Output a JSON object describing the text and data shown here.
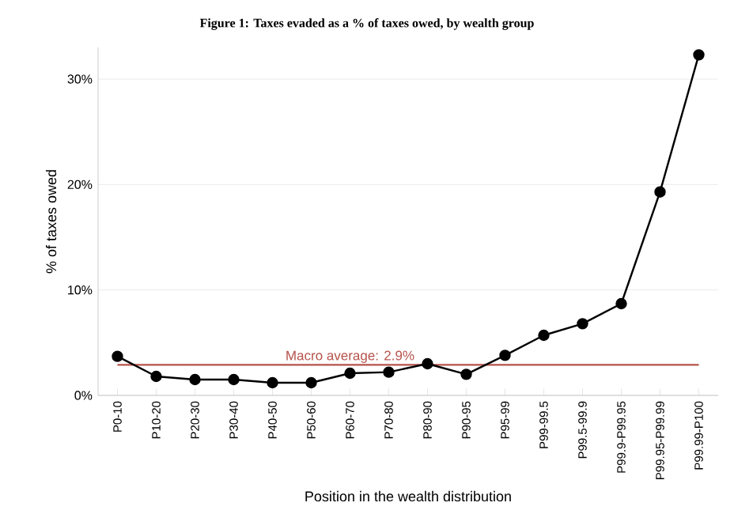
{
  "chart_data": {
    "type": "line",
    "title": "Figure 1: Taxes evaded as a % of taxes owed, by wealth group",
    "xlabel": "Position in the wealth distribution",
    "ylabel": "% of taxes owed",
    "categories": [
      "P0-10",
      "P10-20",
      "P20-30",
      "P30-40",
      "P40-50",
      "P50-60",
      "P60-70",
      "P70-80",
      "P80-90",
      "P90-95",
      "P95-99",
      "P99-99.5",
      "P99.5-99.9",
      "P99.9-P99.95",
      "P99.95-P99.99",
      "P99.99-P100"
    ],
    "series": [
      {
        "color": "#000000",
        "values": [
          3.7,
          1.8,
          1.5,
          1.5,
          1.2,
          1.2,
          2.1,
          2.2,
          3.0,
          2.0,
          3.8,
          5.7,
          6.8,
          8.7,
          19.3,
          32.3
        ]
      }
    ],
    "ylim": [
      0,
      33
    ],
    "yticks": [
      {
        "value": 0,
        "label": "0%"
      },
      {
        "value": 10,
        "label": "10%"
      },
      {
        "value": 20,
        "label": "20%"
      },
      {
        "value": 30,
        "label": "30%"
      }
    ],
    "grid": "y",
    "marker": "circle",
    "line_style": "solid",
    "ref_lines": [
      {
        "axis": "y",
        "value": 2.9,
        "label": "Macro average: 2.9%",
        "color": "#b5524a"
      }
    ]
  }
}
